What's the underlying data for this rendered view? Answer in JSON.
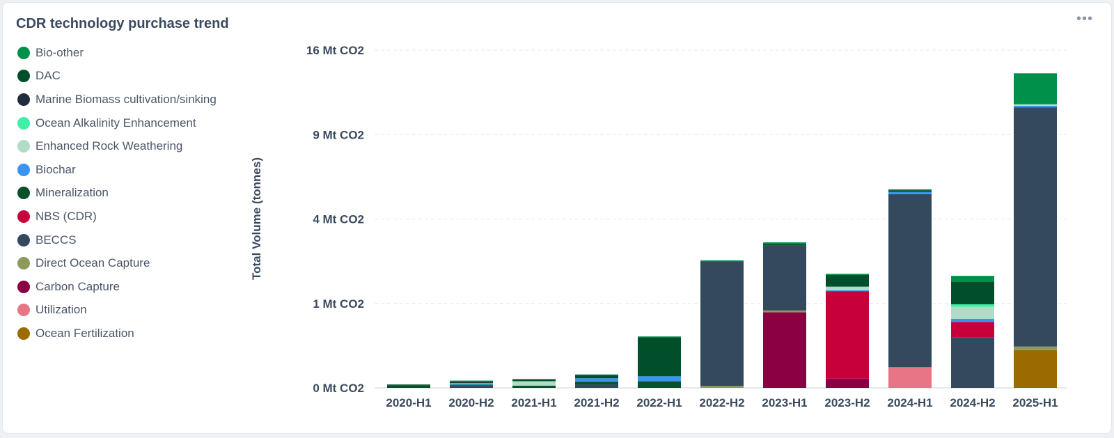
{
  "card": {
    "title": "CDR technology purchase trend",
    "menu_icon": "more-horizontal-icon",
    "menu_glyph": "•••"
  },
  "chart_data": {
    "type": "bar",
    "stacked": true,
    "title": "CDR technology purchase trend",
    "ylabel": "Total Volume (tonnes)",
    "xlabel": "",
    "y_scale": "sqrt",
    "ylim": [
      0,
      16
    ],
    "y_unit": "Mt CO2",
    "y_ticks": [
      0,
      1,
      4,
      9,
      16
    ],
    "y_tick_labels": [
      "0 Mt CO2",
      "1 Mt CO2",
      "4 Mt CO2",
      "9 Mt CO2",
      "16 Mt CO2"
    ],
    "grid": true,
    "legend_position": "left",
    "categories": [
      "2020-H1",
      "2020-H2",
      "2021-H1",
      "2021-H2",
      "2022-H1",
      "2022-H2",
      "2023-H1",
      "2023-H2",
      "2024-H1",
      "2024-H2",
      "2025-H1"
    ],
    "series": [
      {
        "name": "Ocean Fertilization",
        "color": "#9b6a00",
        "values": [
          0,
          0,
          0,
          0,
          0,
          0,
          0,
          0,
          0,
          0,
          0.2
        ]
      },
      {
        "name": "Utilization",
        "color": "#e87585",
        "values": [
          0,
          0,
          0,
          0,
          0,
          0,
          0,
          0,
          0.06,
          0,
          0
        ]
      },
      {
        "name": "Carbon Capture",
        "color": "#8b0042",
        "values": [
          0,
          0,
          0,
          0,
          0,
          0,
          0.8,
          0.012,
          0,
          0,
          0
        ]
      },
      {
        "name": "Direct Ocean Capture",
        "color": "#8c9a5b",
        "values": [
          0,
          0,
          0,
          0,
          0,
          0.0005,
          0.04,
          0,
          0,
          0,
          0.04
        ]
      },
      {
        "name": "BECCS",
        "color": "#34495e",
        "values": [
          0,
          0.0009,
          0,
          0.0013,
          0,
          2.25,
          2.0,
          0,
          5.2,
          0.36,
          10.8
        ]
      },
      {
        "name": "NBS (CDR)",
        "color": "#c8003a",
        "values": [
          0,
          0,
          0,
          0,
          0,
          0,
          0,
          1.3,
          0,
          0.25,
          0
        ]
      },
      {
        "name": "Mineralization",
        "color": "#0b4f2b",
        "values": [
          0.0009,
          0.0004,
          0.0007,
          0.004,
          0.006,
          0,
          0,
          0,
          0,
          0,
          0
        ]
      },
      {
        "name": "Biochar",
        "color": "#3a94f0",
        "values": [
          0,
          0.0006,
          0,
          0.0075,
          0.013,
          0,
          0,
          0.025,
          0.13,
          0.06,
          0.12
        ]
      },
      {
        "name": "Enhanced Rock Weathering",
        "color": "#b0dcc6",
        "values": [
          0,
          0,
          0.0055,
          0,
          0,
          0,
          0,
          0.1,
          0,
          0.25,
          0.12
        ]
      },
      {
        "name": "Ocean Alkalinity Enhancement",
        "color": "#3ef0a5",
        "values": [
          0,
          0.0012,
          0,
          0,
          0,
          0,
          0,
          0,
          0,
          0.06,
          0
        ]
      },
      {
        "name": "Marine Biomass cultivation/sinking",
        "color": "#1f2d3d",
        "values": [
          0,
          0.0015,
          0,
          0,
          0,
          0,
          0,
          0,
          0,
          0,
          0
        ]
      },
      {
        "name": "DAC",
        "color": "#004f2a",
        "values": [
          0.0001,
          0.0012,
          0.003,
          0.0095,
          0.34,
          0,
          0.06,
          0.35,
          0.09,
          0.6,
          0
        ]
      },
      {
        "name": "Bio-other",
        "color": "#00904a",
        "values": [
          0,
          0.0003,
          0.0003,
          0.0006,
          0.003,
          0.03,
          0.07,
          0.04,
          0.05,
          0.18,
          2.6
        ]
      }
    ]
  },
  "legend": {
    "items": [
      {
        "label": "Bio-other",
        "color": "#00904a"
      },
      {
        "label": "DAC",
        "color": "#004f2a"
      },
      {
        "label": "Marine Biomass cultivation/sinking",
        "color": "#1f2d3d"
      },
      {
        "label": "Ocean Alkalinity Enhancement",
        "color": "#3ef0a5"
      },
      {
        "label": "Enhanced Rock Weathering",
        "color": "#b0dcc6"
      },
      {
        "label": "Biochar",
        "color": "#3a94f0"
      },
      {
        "label": "Mineralization",
        "color": "#0b4f2b"
      },
      {
        "label": "NBS (CDR)",
        "color": "#c8003a"
      },
      {
        "label": "BECCS",
        "color": "#34495e"
      },
      {
        "label": "Direct Ocean Capture",
        "color": "#8c9a5b"
      },
      {
        "label": "Carbon Capture",
        "color": "#8b0042"
      },
      {
        "label": "Utilization",
        "color": "#e87585"
      },
      {
        "label": "Ocean Fertilization",
        "color": "#9b6a00"
      }
    ]
  }
}
